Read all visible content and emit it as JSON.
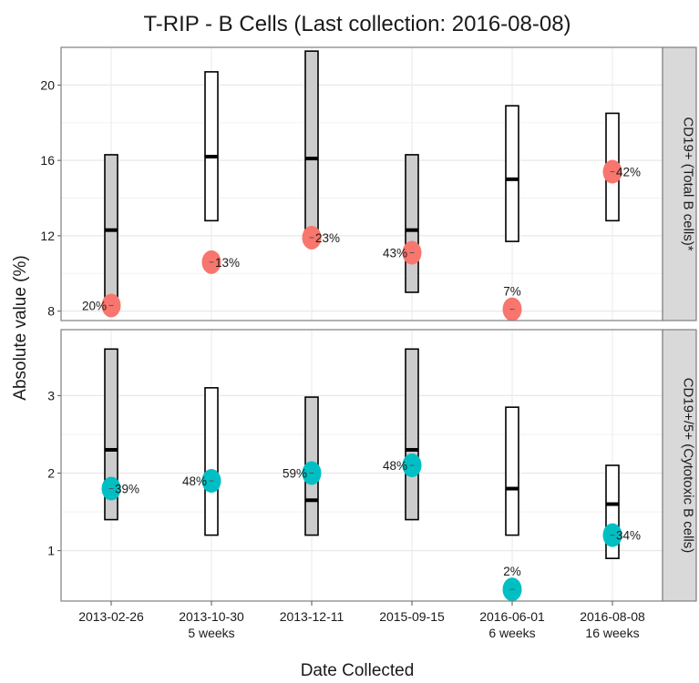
{
  "chart_data": {
    "type": "scatter",
    "title": "T-RIP - B Cells (Last collection: 2016-08-08)",
    "xlabel": "Date Collected",
    "ylabel": "Absolute value (%)",
    "grid": true,
    "categories": [
      "2013-02-26",
      "2013-10-30",
      "2013-12-11",
      "2015-09-15",
      "2016-06-01",
      "2016-08-08"
    ],
    "category_sublabels": [
      "",
      "5 weeks",
      "",
      "",
      "6 weeks",
      "16 weeks"
    ],
    "panels": [
      {
        "strip_label": "CD19+ (Total B cells)*",
        "ylim": [
          7.5,
          22
        ],
        "yticks": [
          8,
          12,
          16,
          20
        ],
        "point_color": "#f8766d",
        "ranges": [
          {
            "low": 8.2,
            "high": 16.3,
            "median": 12.3,
            "fill": "#cccccc"
          },
          {
            "low": 12.8,
            "high": 20.7,
            "median": 16.2,
            "fill": "#ffffff"
          },
          {
            "low": 11.8,
            "high": 21.8,
            "median": 16.1,
            "fill": "#cccccc"
          },
          {
            "low": 9.0,
            "high": 16.3,
            "median": 12.3,
            "fill": "#cccccc"
          },
          {
            "low": 11.7,
            "high": 18.9,
            "median": 15.0,
            "fill": "#ffffff"
          },
          {
            "low": 12.8,
            "high": 18.5,
            "median": 15.4,
            "fill": "#ffffff"
          }
        ],
        "values": [
          8.3,
          10.6,
          11.9,
          11.1,
          8.1,
          15.4
        ],
        "point_labels": [
          "20%",
          "13%",
          "23%",
          "43%",
          "7%",
          "42%"
        ],
        "label_positions": [
          "left",
          "right",
          "right",
          "left",
          "above",
          "right"
        ]
      },
      {
        "strip_label": "CD19+/5+ (Cytotoxic B cells)",
        "ylim": [
          0.35,
          3.85
        ],
        "yticks": [
          1,
          2,
          3
        ],
        "point_color": "#00bfc4",
        "ranges": [
          {
            "low": 1.4,
            "high": 3.6,
            "median": 2.3,
            "fill": "#cccccc"
          },
          {
            "low": 1.2,
            "high": 3.1,
            "median": 1.9,
            "fill": "#ffffff"
          },
          {
            "low": 1.2,
            "high": 2.98,
            "median": 1.65,
            "fill": "#cccccc"
          },
          {
            "low": 1.4,
            "high": 3.6,
            "median": 2.3,
            "fill": "#cccccc"
          },
          {
            "low": 1.2,
            "high": 2.85,
            "median": 1.8,
            "fill": "#ffffff"
          },
          {
            "low": 0.9,
            "high": 2.1,
            "median": 1.6,
            "fill": "#ffffff"
          }
        ],
        "values": [
          1.8,
          1.9,
          2.0,
          2.1,
          0.5,
          1.2
        ],
        "point_labels": [
          "39%",
          "48%",
          "59%",
          "48%",
          "2%",
          "34%"
        ],
        "label_positions": [
          "right",
          "left",
          "left",
          "left",
          "above",
          "right"
        ]
      }
    ]
  }
}
